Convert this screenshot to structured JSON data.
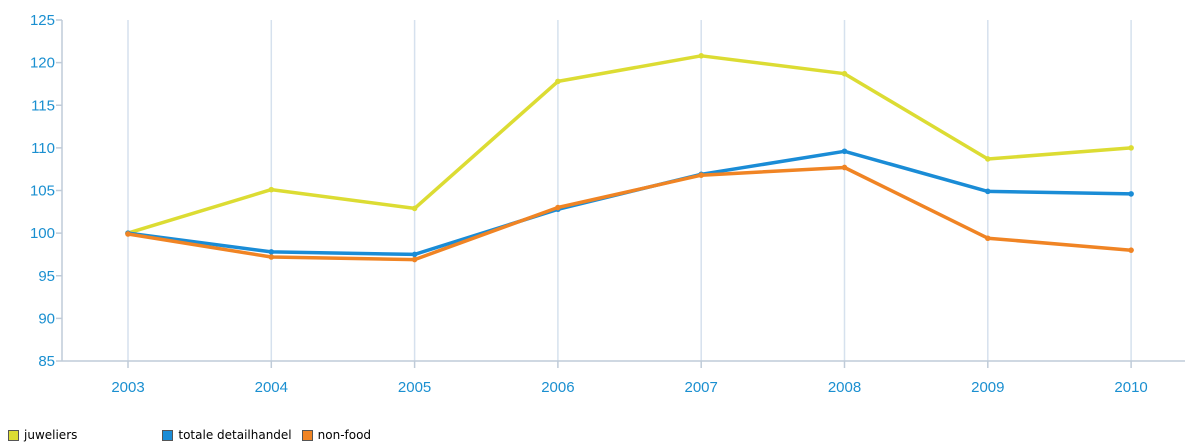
{
  "chart_data": {
    "type": "line",
    "title": "",
    "xlabel": "",
    "ylabel": "",
    "categories": [
      "2003",
      "2004",
      "2005",
      "2006",
      "2007",
      "2008",
      "2009",
      "2010"
    ],
    "ylim": [
      85,
      125
    ],
    "yticks": [
      85,
      90,
      95,
      100,
      105,
      110,
      115,
      120,
      125
    ],
    "grid": "vertical",
    "legend_position": "bottom-left",
    "axis_label_color": "#1a8fd0",
    "series": [
      {
        "name": "juweliers",
        "color": "#dcdc33",
        "values": [
          100.0,
          105.1,
          102.9,
          117.8,
          120.8,
          118.7,
          108.7,
          110.0
        ]
      },
      {
        "name": "totale detailhandel",
        "color": "#1a8cd6",
        "values": [
          100.0,
          97.8,
          97.5,
          102.8,
          106.9,
          109.6,
          104.9,
          104.6
        ]
      },
      {
        "name": "non-food",
        "color": "#f08424",
        "values": [
          99.9,
          97.2,
          96.9,
          103.0,
          106.8,
          107.7,
          99.4,
          98.0
        ]
      }
    ]
  }
}
